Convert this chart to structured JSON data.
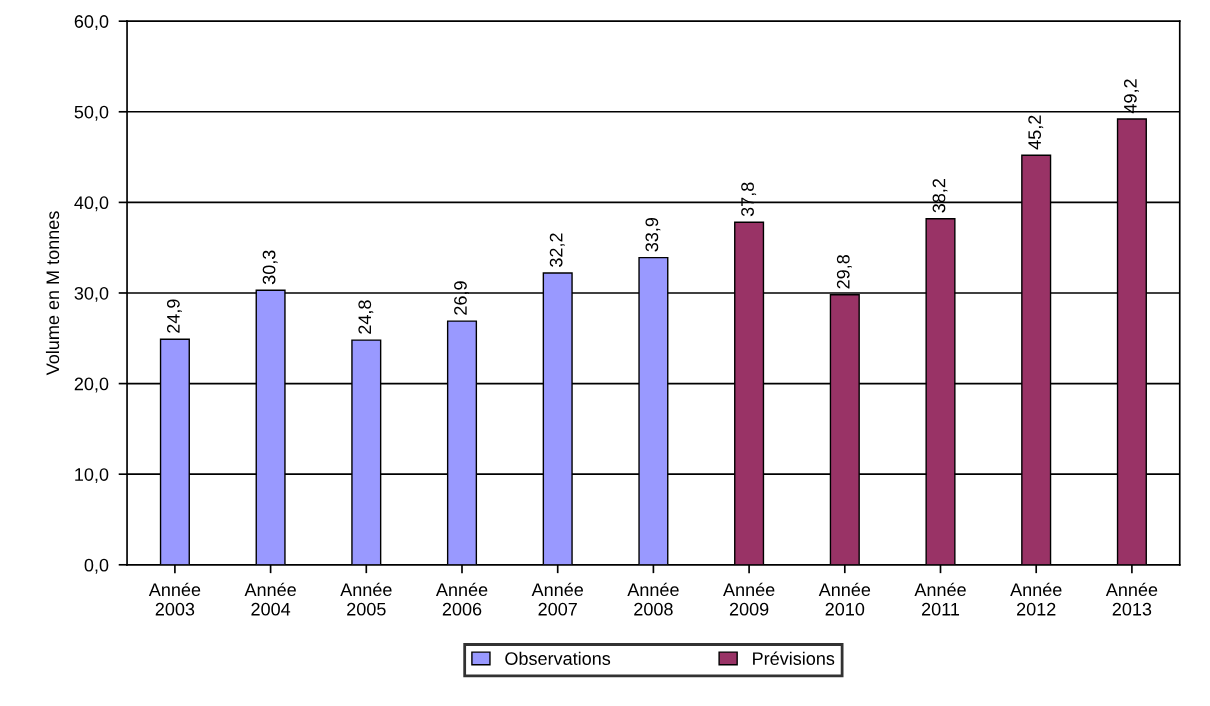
{
  "chart_data": {
    "type": "bar",
    "ylabel": "Volume en M tonnes",
    "categories": [
      "Année\n2003",
      "Année\n2004",
      "Année\n2005",
      "Année\n2006",
      "Année\n2007",
      "Année\n2008",
      "Année\n2009",
      "Année\n2010",
      "Année\n2011",
      "Année\n2012",
      "Année\n2013"
    ],
    "series": [
      {
        "name": "Observations",
        "color": "#9999ff",
        "values": [
          24.9,
          30.3,
          24.8,
          26.9,
          32.2,
          33.9,
          null,
          null,
          null,
          null,
          null
        ],
        "value_labels": [
          "24,9",
          "30,3",
          "24,8",
          "26,9",
          "32,2",
          "33,9",
          null,
          null,
          null,
          null,
          null
        ]
      },
      {
        "name": "Prévisions",
        "color": "#993366",
        "values": [
          null,
          null,
          null,
          null,
          null,
          null,
          37.8,
          29.8,
          38.2,
          45.2,
          49.2
        ],
        "value_labels": [
          null,
          null,
          null,
          null,
          null,
          null,
          "37,8",
          "29,8",
          "38,2",
          "45,2",
          "49,2"
        ]
      }
    ],
    "ylim": [
      0,
      60
    ],
    "yticks": [
      {
        "value": 0,
        "label": "0,0"
      },
      {
        "value": 10,
        "label": "10,0"
      },
      {
        "value": 20,
        "label": "20,0"
      },
      {
        "value": 30,
        "label": "30,0"
      },
      {
        "value": 40,
        "label": "40,0"
      },
      {
        "value": 50,
        "label": "50,0"
      },
      {
        "value": 60,
        "label": "60,0"
      }
    ],
    "grid": "y",
    "legend": "bottom"
  }
}
